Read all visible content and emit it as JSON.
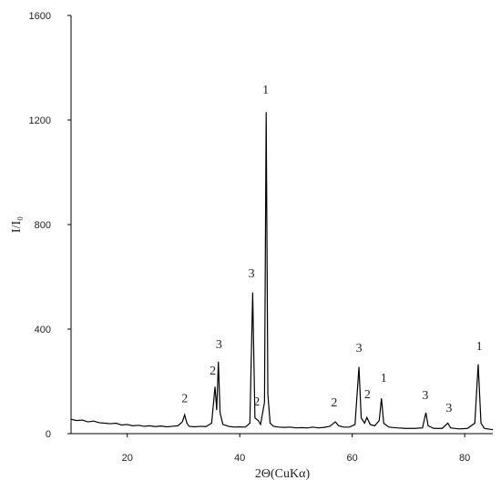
{
  "chart_data": {
    "type": "line",
    "xlabel": "2Θ(CuKα)",
    "ylabel": "I/I₀",
    "xlim": [
      10,
      85
    ],
    "ylim": [
      0,
      1600
    ],
    "xticks": [
      20,
      40,
      60,
      80
    ],
    "yticks": [
      0,
      400,
      800,
      1200,
      1600
    ],
    "series": [
      {
        "color": "#000000",
        "x": [
          10,
          11,
          12,
          13,
          14,
          15,
          16,
          17,
          18,
          19,
          20,
          21,
          22,
          23,
          24,
          25,
          26,
          27,
          28,
          29,
          29.8,
          30.2,
          30.6,
          31,
          32,
          33,
          34,
          35,
          35.6,
          35.9,
          36.2,
          36.5,
          37,
          38,
          39,
          40,
          41,
          41.8,
          42.3,
          42.7,
          43.3,
          43.7,
          44.4,
          44.7,
          45.0,
          45.4,
          46,
          47,
          48,
          49,
          50,
          51,
          52,
          53,
          54,
          55,
          56,
          57,
          57.6,
          58.5,
          59.5,
          60.5,
          61.2,
          61.6,
          62.2,
          62.6,
          63.2,
          64,
          64.8,
          65.2,
          65.6,
          66.5,
          68,
          69.5,
          71,
          72.5,
          73.1,
          73.5,
          74.5,
          76,
          77,
          77.5,
          79,
          80.5,
          81.8,
          82.4,
          82.9,
          83.5,
          85
        ],
        "values": [
          55,
          50,
          52,
          45,
          48,
          42,
          40,
          38,
          40,
          33,
          35,
          30,
          32,
          28,
          30,
          27,
          29,
          26,
          28,
          30,
          45,
          72,
          40,
          28,
          26,
          28,
          27,
          40,
          180,
          90,
          275,
          80,
          35,
          28,
          25,
          26,
          25,
          40,
          540,
          60,
          50,
          35,
          120,
          1230,
          150,
          40,
          28,
          25,
          24,
          25,
          22,
          23,
          22,
          25,
          22,
          24,
          28,
          45,
          30,
          25,
          25,
          35,
          255,
          60,
          40,
          62,
          35,
          30,
          50,
          135,
          40,
          25,
          22,
          20,
          20,
          22,
          80,
          30,
          20,
          20,
          40,
          22,
          18,
          20,
          40,
          265,
          40,
          20,
          15
        ]
      }
    ],
    "annotations": [
      {
        "text": "2",
        "x": 30.2,
        "y": 120
      },
      {
        "text": "2",
        "x": 35.2,
        "y": 226
      },
      {
        "text": "3",
        "x": 36.3,
        "y": 327
      },
      {
        "text": "3",
        "x": 42.1,
        "y": 598
      },
      {
        "text": "2",
        "x": 43.0,
        "y": 108
      },
      {
        "text": "1",
        "x": 44.6,
        "y": 1301
      },
      {
        "text": "2",
        "x": 56.8,
        "y": 104
      },
      {
        "text": "3",
        "x": 61.2,
        "y": 313
      },
      {
        "text": "2",
        "x": 62.7,
        "y": 136
      },
      {
        "text": "1",
        "x": 65.6,
        "y": 198
      },
      {
        "text": "3",
        "x": 73.0,
        "y": 132
      },
      {
        "text": "3",
        "x": 77.2,
        "y": 83
      },
      {
        "text": "1",
        "x": 82.6,
        "y": 320
      }
    ]
  }
}
